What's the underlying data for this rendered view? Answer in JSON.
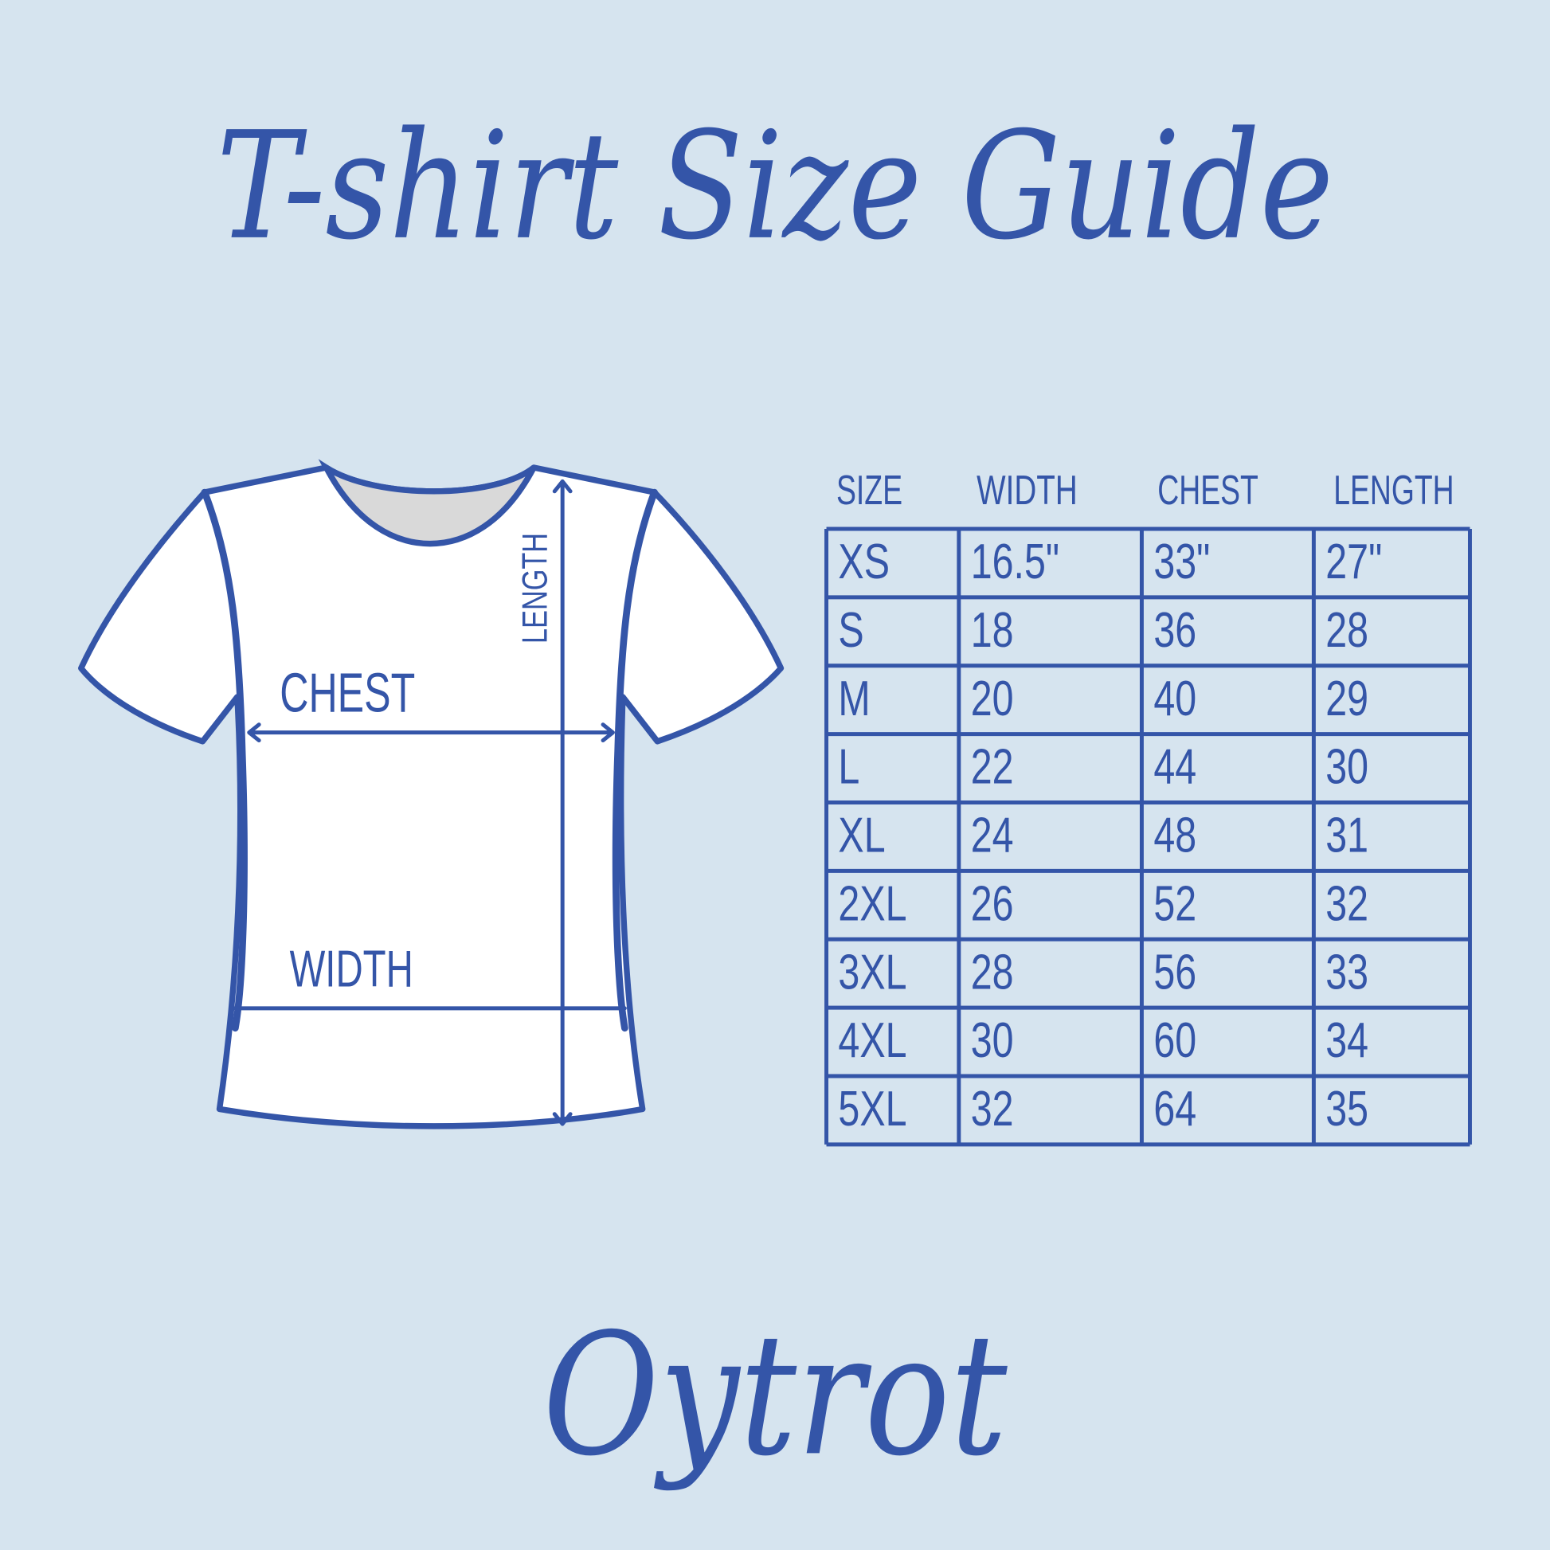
{
  "title": "T-shirt Size Guide",
  "colors": {
    "background": "#d6e4ef",
    "accent": "#3455a8",
    "shirt": "#ffffff",
    "collar": "#d9d9d9"
  },
  "diagram": {
    "chest_label": "CHEST",
    "width_label": "WIDTH",
    "length_label": "LENGTH"
  },
  "table": {
    "headers": [
      "SIZE",
      "WIDTH",
      "CHEST",
      "LENGTH"
    ],
    "rows": [
      [
        "XS",
        "16.5\"",
        "33\"",
        "27\""
      ],
      [
        "S",
        "18",
        "36",
        "28"
      ],
      [
        "M",
        "20",
        "40",
        "29"
      ],
      [
        "L",
        "22",
        "44",
        "30"
      ],
      [
        "XL",
        "24",
        "48",
        "31"
      ],
      [
        "2XL",
        "26",
        "52",
        "32"
      ],
      [
        "3XL",
        "28",
        "56",
        "33"
      ],
      [
        "4XL",
        "30",
        "60",
        "34"
      ],
      [
        "5XL",
        "32",
        "64",
        "35"
      ]
    ]
  },
  "logo": "Oytrot"
}
